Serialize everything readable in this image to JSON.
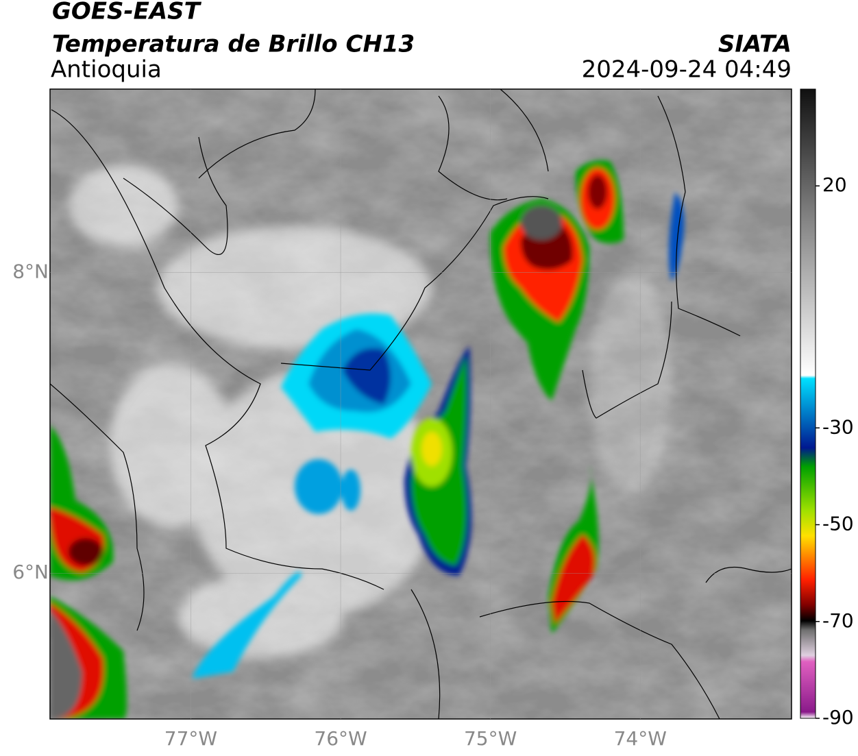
{
  "header": {
    "title": "GOES-EAST",
    "subtitle": "Temperatura de Brillo CH13",
    "region": "Antioquia",
    "agency": "SIATA",
    "datetime": "2024-09-24 04:49"
  },
  "map": {
    "xlim": [
      -77.94,
      -72.99
    ],
    "ylim": [
      5.03,
      9.22
    ],
    "xticks": [
      {
        "value": -77,
        "label": "77°W"
      },
      {
        "value": -76,
        "label": "76°W"
      },
      {
        "value": -75,
        "label": "75°W"
      },
      {
        "value": -74,
        "label": "74°W"
      }
    ],
    "yticks": [
      {
        "value": 6,
        "label": "6°N"
      },
      {
        "value": 8,
        "label": "8°N"
      }
    ],
    "grid": true
  },
  "colorbar": {
    "lim": [
      -90,
      40
    ],
    "ticks": [
      20,
      -30,
      -50,
      -70,
      -90
    ]
  }
}
